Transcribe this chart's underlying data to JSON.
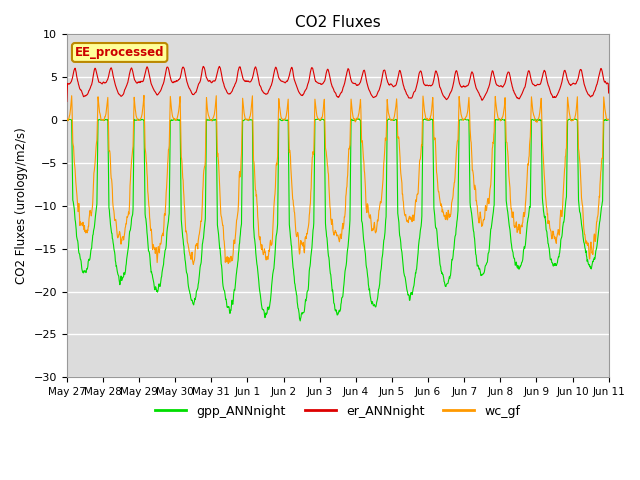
{
  "title": "CO2 Fluxes",
  "ylabel": "CO2 Fluxes (urology/m2/s)",
  "ylim": [
    -30,
    10
  ],
  "yticks": [
    -30,
    -25,
    -20,
    -15,
    -10,
    -5,
    0,
    5,
    10
  ],
  "background_color": "#dcdcdc",
  "n_days": 15,
  "points_per_day": 96,
  "xtick_labels": [
    "May 27",
    "May 28",
    "May 29",
    "May 30",
    "May 31",
    "Jun 1",
    "Jun 2",
    "Jun 3",
    "Jun 4",
    "Jun 5",
    "Jun 6",
    "Jun 7",
    "Jun 8",
    "Jun 9",
    "Jun 10",
    "Jun 11"
  ],
  "gpp_color": "#00dd00",
  "er_color": "#dd0000",
  "wc_color": "#ff9900",
  "legend_label_box": "EE_processed",
  "legend_entries": [
    "gpp_ANNnight",
    "er_ANNnight",
    "wc_gf"
  ]
}
